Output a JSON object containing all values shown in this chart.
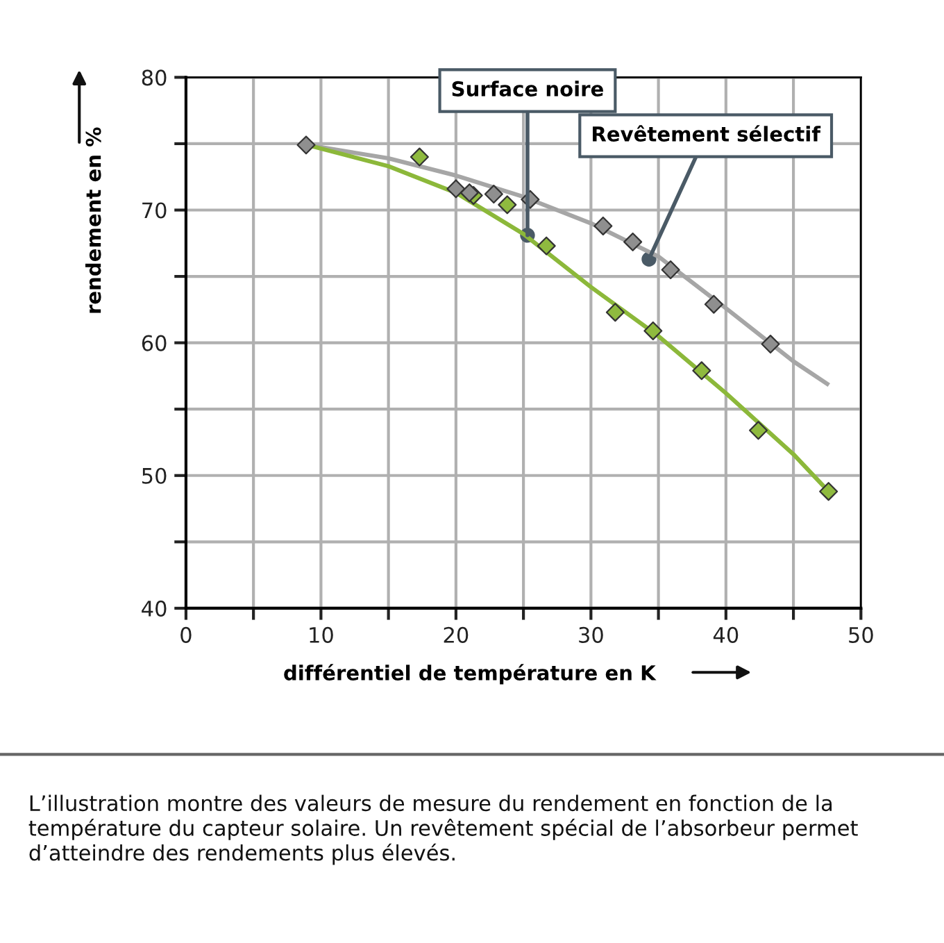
{
  "chart_data": {
    "type": "scatter",
    "xlabel": "différentiel de température en K",
    "ylabel": "rendement en %",
    "xlim": [
      0,
      50
    ],
    "xticks": [
      0,
      {
        "value": 5,
        "label": null
      },
      10,
      {
        "value": 15,
        "label": null
      },
      20,
      {
        "value": 25,
        "label": null
      },
      30,
      {
        "value": 35,
        "label": null
      },
      40,
      {
        "value": 45,
        "label": null
      },
      50
    ],
    "ylim": [
      40,
      80
    ],
    "yticks": [
      40,
      {
        "value": 45,
        "label": null
      },
      50,
      {
        "value": 55,
        "label": null
      },
      60,
      {
        "value": 65,
        "label": null
      },
      70,
      {
        "value": 75,
        "label": null
      },
      80
    ],
    "grid": true,
    "marker": "diamond",
    "legend": false,
    "series": [
      {
        "type": "line",
        "marker": "none",
        "color": "#a6a6a6",
        "x": [
          9,
          15,
          20,
          25,
          30,
          35,
          40,
          45,
          47.5
        ],
        "values": [
          74.9,
          73.9,
          72.6,
          71.0,
          69.0,
          66.5,
          62.6,
          58.6,
          56.9
        ]
      },
      {
        "type": "line",
        "marker": "none",
        "color": "#8cb83a",
        "x": [
          9,
          15,
          20,
          25,
          30,
          35,
          40,
          45,
          47.6
        ],
        "values": [
          74.9,
          73.3,
          71.3,
          68.2,
          64.2,
          60.5,
          56.2,
          51.6,
          48.8
        ]
      },
      {
        "color": "#8f8f8f",
        "x": [
          8.9,
          20.0,
          21.0,
          22.8,
          25.5,
          30.9,
          33.1,
          35.9,
          39.1,
          43.3
        ],
        "values": [
          74.9,
          71.6,
          71.3,
          71.2,
          70.8,
          68.8,
          67.6,
          65.5,
          62.9,
          59.9
        ]
      },
      {
        "color": "#8fba3f",
        "x": [
          17.3,
          21.3,
          23.8,
          26.7,
          31.8,
          34.6,
          38.2,
          42.4,
          47.6
        ],
        "values": [
          74.0,
          71.1,
          70.4,
          67.3,
          62.3,
          60.9,
          57.9,
          53.4,
          48.8
        ]
      }
    ],
    "annotations": [
      {
        "text": "Surface noire",
        "x": 25.3,
        "y": 68.1
      },
      {
        "text": "Revêtement sélectif",
        "x": 34.3,
        "y": 66.3
      },
      "L’illustration montre des valeurs de mesure du rendement en fonction de la température du capteur solaire. Un revêtement spécial de l’absorbeur permet d’atteindre des rendements plus élevés."
    ]
  }
}
